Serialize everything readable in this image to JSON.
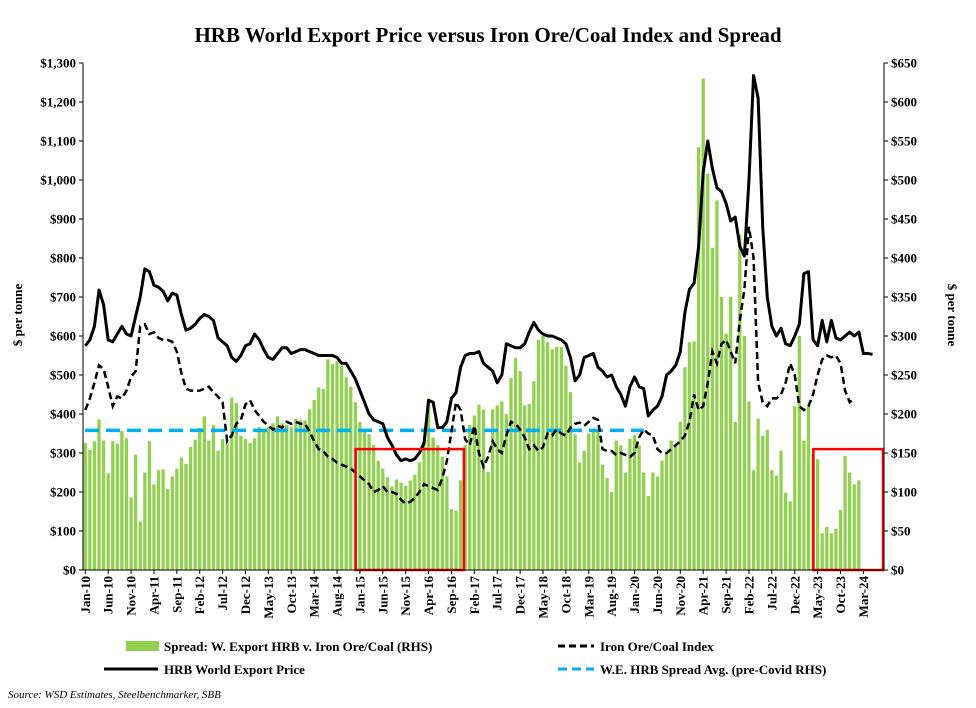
{
  "chart_data": {
    "type": "bar+line",
    "title": "HRB World Export Price versus Iron Ore/Coal Index and Spread",
    "ylabel_left": "$ per tonne",
    "ylabel_right": "$ per tonne",
    "ylim_left": [
      0,
      1300
    ],
    "ylim_right": [
      0,
      650
    ],
    "yticks_left": [
      "$0",
      "$100",
      "$200",
      "$300",
      "$400",
      "$500",
      "$600",
      "$700",
      "$800",
      "$900",
      "$1,000",
      "$1,100",
      "$1,200",
      "$1,300"
    ],
    "yticks_right": [
      "$0",
      "$50",
      "$100",
      "$150",
      "$200",
      "$250",
      "$300",
      "$350",
      "$400",
      "$450",
      "$500",
      "$550",
      "$600",
      "$650"
    ],
    "xticks": [
      "Jan-10",
      "Jun-10",
      "Nov-10",
      "Apr-11",
      "Sep-11",
      "Feb-12",
      "Jul-12",
      "Dec-12",
      "May-13",
      "Oct-13",
      "Mar-14",
      "Aug-14",
      "Jan-15",
      "Jun-15",
      "Nov-15",
      "Apr-16",
      "Sep-16",
      "Feb-17",
      "Jul-17",
      "Dec-17",
      "May-18",
      "Oct-18",
      "Mar-19",
      "Aug-19",
      "Jan-20",
      "Jun-20",
      "Nov-20",
      "Apr-21",
      "Sep-21",
      "Feb-22",
      "Jul-22",
      "Dec-22",
      "May-23",
      "Oct-23",
      "Mar-24"
    ],
    "x_start": "Jan-10",
    "x_end": "Jul-24",
    "grid": false,
    "legend_position": "bottom",
    "series": [
      {
        "name": "Spread: W. Export HRB v. Iron Ore/Coal (RHS)",
        "type": "bar",
        "axis": "right",
        "color": "#92d050",
        "values": [
          163,
          154,
          165,
          193,
          166,
          124,
          165,
          162,
          178,
          169,
          93,
          148,
          62,
          125,
          165,
          110,
          128,
          129,
          104,
          120,
          130,
          144,
          136,
          158,
          167,
          182,
          197,
          166,
          186,
          153,
          168,
          162,
          221,
          214,
          172,
          168,
          163,
          169,
          183,
          177,
          184,
          188,
          197,
          188,
          186,
          183,
          194,
          192,
          192,
          206,
          218,
          234,
          232,
          270,
          264,
          268,
          262,
          247,
          235,
          215,
          190,
          178,
          174,
          160,
          140,
          130,
          119,
          107,
          116,
          112,
          108,
          115,
          122,
          138,
          165,
          220,
          170,
          160,
          145,
          120,
          78,
          76,
          115,
          160,
          186,
          198,
          212,
          206,
          126,
          206,
          211,
          216,
          200,
          246,
          272,
          255,
          211,
          213,
          242,
          295,
          300,
          292,
          283,
          286,
          286,
          262,
          228,
          174,
          138,
          153,
          175,
          178,
          177,
          135,
          118,
          100,
          166,
          160,
          125,
          168,
          173,
          160,
          125,
          95,
          125,
          120,
          140,
          150,
          166,
          160,
          190,
          260,
          292,
          293,
          542,
          630,
          508,
          413,
          474,
          350,
          303,
          350,
          190,
          430,
          300,
          216,
          128,
          194,
          172,
          180,
          128,
          121,
          153,
          99,
          88,
          210,
          300,
          166,
          210,
          149,
          142,
          47,
          55,
          47,
          53,
          77,
          146,
          125,
          110,
          115
        ]
      },
      {
        "name": "Iron Ore/Coal Index",
        "type": "line",
        "axis": "left",
        "style": "dashed",
        "color": "#000000",
        "values": [
          410,
          440,
          480,
          525,
          515,
          470,
          420,
          445,
          440,
          460,
          495,
          510,
          625,
          630,
          605,
          610,
          595,
          590,
          590,
          585,
          560,
          505,
          465,
          460,
          460,
          460,
          465,
          470,
          455,
          445,
          430,
          330,
          345,
          375,
          385,
          425,
          435,
          410,
          395,
          380,
          370,
          360,
          370,
          365,
          380,
          375,
          380,
          375,
          375,
          355,
          330,
          310,
          305,
          290,
          285,
          275,
          270,
          265,
          260,
          250,
          240,
          230,
          220,
          200,
          205,
          215,
          200,
          200,
          195,
          180,
          170,
          175,
          185,
          200,
          220,
          215,
          210,
          205,
          235,
          280,
          355,
          430,
          410,
          335,
          320,
          370,
          300,
          265,
          290,
          330,
          310,
          300,
          345,
          380,
          375,
          360,
          340,
          310,
          320,
          305,
          315,
          350,
          345,
          360,
          350,
          345,
          365,
          375,
          378,
          370,
          380,
          390,
          385,
          310,
          305,
          305,
          295,
          300,
          295,
          290,
          300,
          340,
          360,
          350,
          345,
          310,
          300,
          300,
          310,
          320,
          330,
          345,
          380,
          450,
          410,
          420,
          480,
          560,
          530,
          580,
          590,
          560,
          530,
          640,
          720,
          880,
          800,
          480,
          430,
          420,
          440,
          440,
          450,
          480,
          530,
          500,
          420,
          410,
          420,
          450,
          500,
          540,
          550,
          545,
          550,
          530,
          460,
          430,
          440
        ]
      },
      {
        "name": "HRB World Export Price",
        "type": "line",
        "axis": "left",
        "style": "solid",
        "color": "#000000",
        "values": [
          575,
          590,
          625,
          718,
          680,
          590,
          585,
          605,
          625,
          605,
          600,
          650,
          700,
          772,
          765,
          730,
          725,
          715,
          690,
          710,
          705,
          655,
          615,
          620,
          630,
          645,
          655,
          650,
          640,
          595,
          585,
          575,
          545,
          535,
          550,
          575,
          580,
          605,
          590,
          565,
          545,
          540,
          555,
          570,
          570,
          555,
          560,
          565,
          565,
          560,
          555,
          550,
          550,
          550,
          550,
          545,
          530,
          530,
          510,
          490,
          460,
          430,
          400,
          385,
          380,
          375,
          340,
          320,
          295,
          280,
          285,
          280,
          285,
          300,
          325,
          435,
          430,
          365,
          365,
          380,
          440,
          455,
          520,
          550,
          555,
          555,
          560,
          530,
          520,
          510,
          480,
          500,
          580,
          575,
          570,
          570,
          580,
          610,
          635,
          615,
          605,
          600,
          600,
          595,
          590,
          580,
          545,
          485,
          500,
          545,
          550,
          555,
          520,
          510,
          495,
          500,
          470,
          450,
          420,
          470,
          495,
          470,
          465,
          395,
          410,
          420,
          445,
          500,
          510,
          525,
          560,
          660,
          720,
          735,
          830,
          1020,
          1100,
          1030,
          980,
          970,
          940,
          895,
          905,
          830,
          805,
          1000,
          1268,
          1210,
          880,
          700,
          625,
          600,
          620,
          580,
          575,
          600,
          630,
          760,
          765,
          590,
          575,
          640,
          585,
          640,
          595,
          590,
          600,
          610,
          600,
          610,
          555,
          555,
          553
        ]
      },
      {
        "name": "W.E. HRB Spread Avg. (pre-Covid RHS)",
        "type": "line",
        "axis": "right",
        "style": "dashed",
        "color": "#00b0f0",
        "value": 179,
        "x_from": "Jan-10",
        "x_to": "Mar-20"
      }
    ],
    "annotations": [
      {
        "type": "highlight-box",
        "color": "#ff0000",
        "x_from": "Jan-15",
        "x_to": "Nov-16"
      },
      {
        "type": "highlight-box",
        "color": "#ff0000",
        "x_from": "May-23",
        "x_to": "Jul-24"
      }
    ],
    "source": "Source: WSD Estimates, Steelbenchmarker, SBB"
  }
}
